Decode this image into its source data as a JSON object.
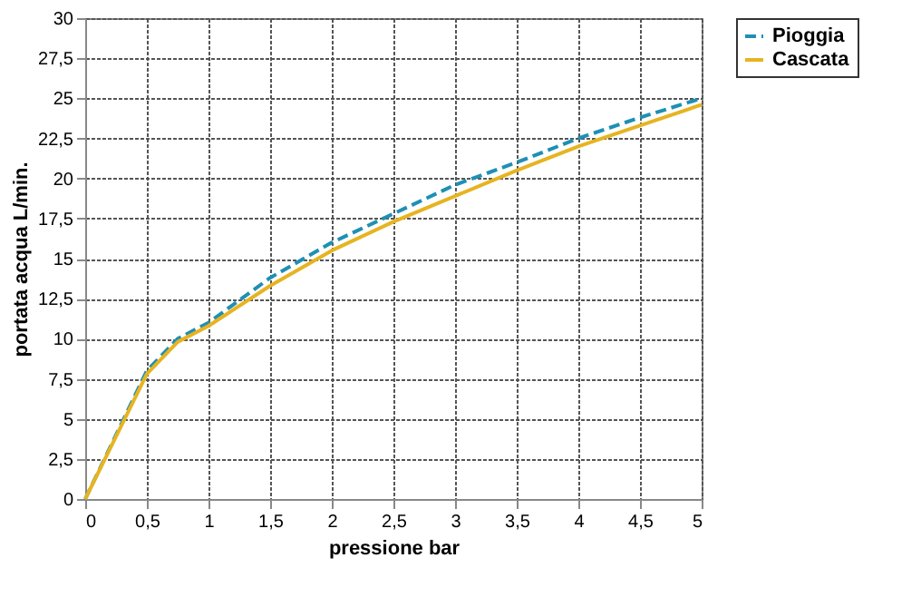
{
  "chart_data": {
    "type": "line",
    "xlabel": "pressione bar",
    "ylabel": "portata acqua  L/min.",
    "x": [
      0,
      0.5,
      0.75,
      1,
      1.5,
      2,
      2.5,
      3,
      3.5,
      4,
      4.5,
      5
    ],
    "series": [
      {
        "name": "Pioggia",
        "color": "#1f8fb5",
        "line_style": "dashed",
        "values": [
          0,
          8.0,
          10.0,
          11.0,
          13.8,
          16.0,
          17.8,
          19.6,
          21.0,
          22.5,
          23.8,
          25.0
        ]
      },
      {
        "name": "Cascata",
        "color": "#e6b422",
        "line_style": "solid",
        "values": [
          0,
          7.8,
          9.8,
          10.8,
          13.3,
          15.5,
          17.3,
          18.9,
          20.5,
          22.0,
          23.3,
          24.6
        ]
      }
    ],
    "xlim": [
      0,
      5
    ],
    "xticks": [
      0,
      {
        "value": 0.5,
        "label": "0,5"
      },
      1,
      {
        "value": 1.5,
        "label": "1,5"
      },
      2,
      {
        "value": 2.5,
        "label": "2,5"
      },
      3,
      {
        "value": 3.5,
        "label": "3,5"
      },
      4,
      {
        "value": 4.5,
        "label": "4,5"
      },
      5
    ],
    "ylim": [
      0,
      30
    ],
    "yticks": [
      0,
      {
        "value": 2.5,
        "label": "2,5"
      },
      5,
      {
        "value": 7.5,
        "label": "7,5"
      },
      10,
      {
        "value": 12.5,
        "label": "12,5"
      },
      15,
      {
        "value": 17.5,
        "label": "17,5"
      },
      20,
      {
        "value": 22.5,
        "label": "22,5"
      },
      25,
      {
        "value": 27.5,
        "label": "27,5"
      },
      30
    ],
    "grid": true,
    "legend": "right",
    "marker": "none"
  }
}
